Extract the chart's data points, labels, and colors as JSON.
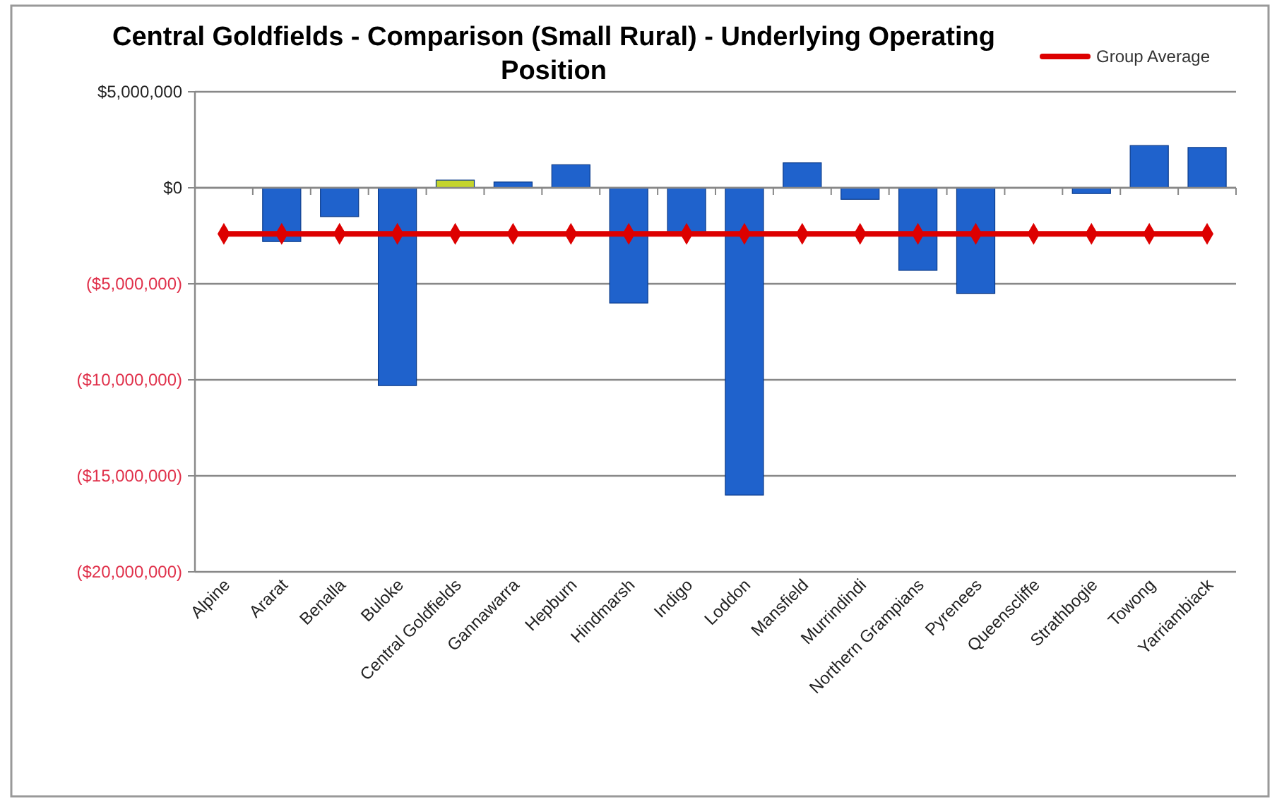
{
  "chart_data": {
    "type": "bar",
    "title": "Central Goldfields - Comparison (Small Rural) - Underlying Operating Position",
    "categories": [
      "Alpine",
      "Ararat",
      "Benalla",
      "Buloke",
      "Central Goldfields",
      "Gannawarra",
      "Hepburn",
      "Hindmarsh",
      "Indigo",
      "Loddon",
      "Mansfield",
      "Murrindindi",
      "Northern Grampians",
      "Pyrenees",
      "Queenscliffe",
      "Strathbogie",
      "Towong",
      "Yarriambiack"
    ],
    "series": [
      {
        "colors": [
          null,
          "#1f62cc",
          "#1f62cc",
          "#1f62cc",
          "#c4d42c",
          "#1f62cc",
          "#1f62cc",
          "#1f62cc",
          "#1f62cc",
          "#1f62cc",
          "#1f62cc",
          "#1f62cc",
          "#1f62cc",
          "#1f62cc",
          "#1f62cc",
          "#1f62cc",
          "#1f62cc",
          "#1f62cc"
        ],
        "values": [
          null,
          -2800000,
          -1500000,
          -10300000,
          400000,
          300000,
          1200000,
          -6000000,
          -2300000,
          -16000000,
          1300000,
          -600000,
          -4300000,
          -5500000,
          0,
          -300000,
          2200000,
          2100000
        ]
      },
      {
        "type": "line",
        "name": "Group Average",
        "color": "#dd0000",
        "marker": "diamond",
        "values": [
          -2400000,
          -2400000,
          -2400000,
          -2400000,
          -2400000,
          -2400000,
          -2400000,
          -2400000,
          -2400000,
          -2400000,
          -2400000,
          -2400000,
          -2400000,
          -2400000,
          -2400000,
          -2400000,
          -2400000,
          -2400000
        ]
      }
    ],
    "ylim": [
      -20000000,
      5000000
    ],
    "yticks": [
      {
        "value": 5000000,
        "label": "$5,000,000"
      },
      {
        "value": 0,
        "label": "$0"
      },
      {
        "value": -5000000,
        "label": "($5,000,000)"
      },
      {
        "value": -10000000,
        "label": "($10,000,000)"
      },
      {
        "value": -15000000,
        "label": "($15,000,000)"
      },
      {
        "value": -20000000,
        "label": "($20,000,000)"
      }
    ],
    "grid": "y",
    "legend": "top right"
  }
}
